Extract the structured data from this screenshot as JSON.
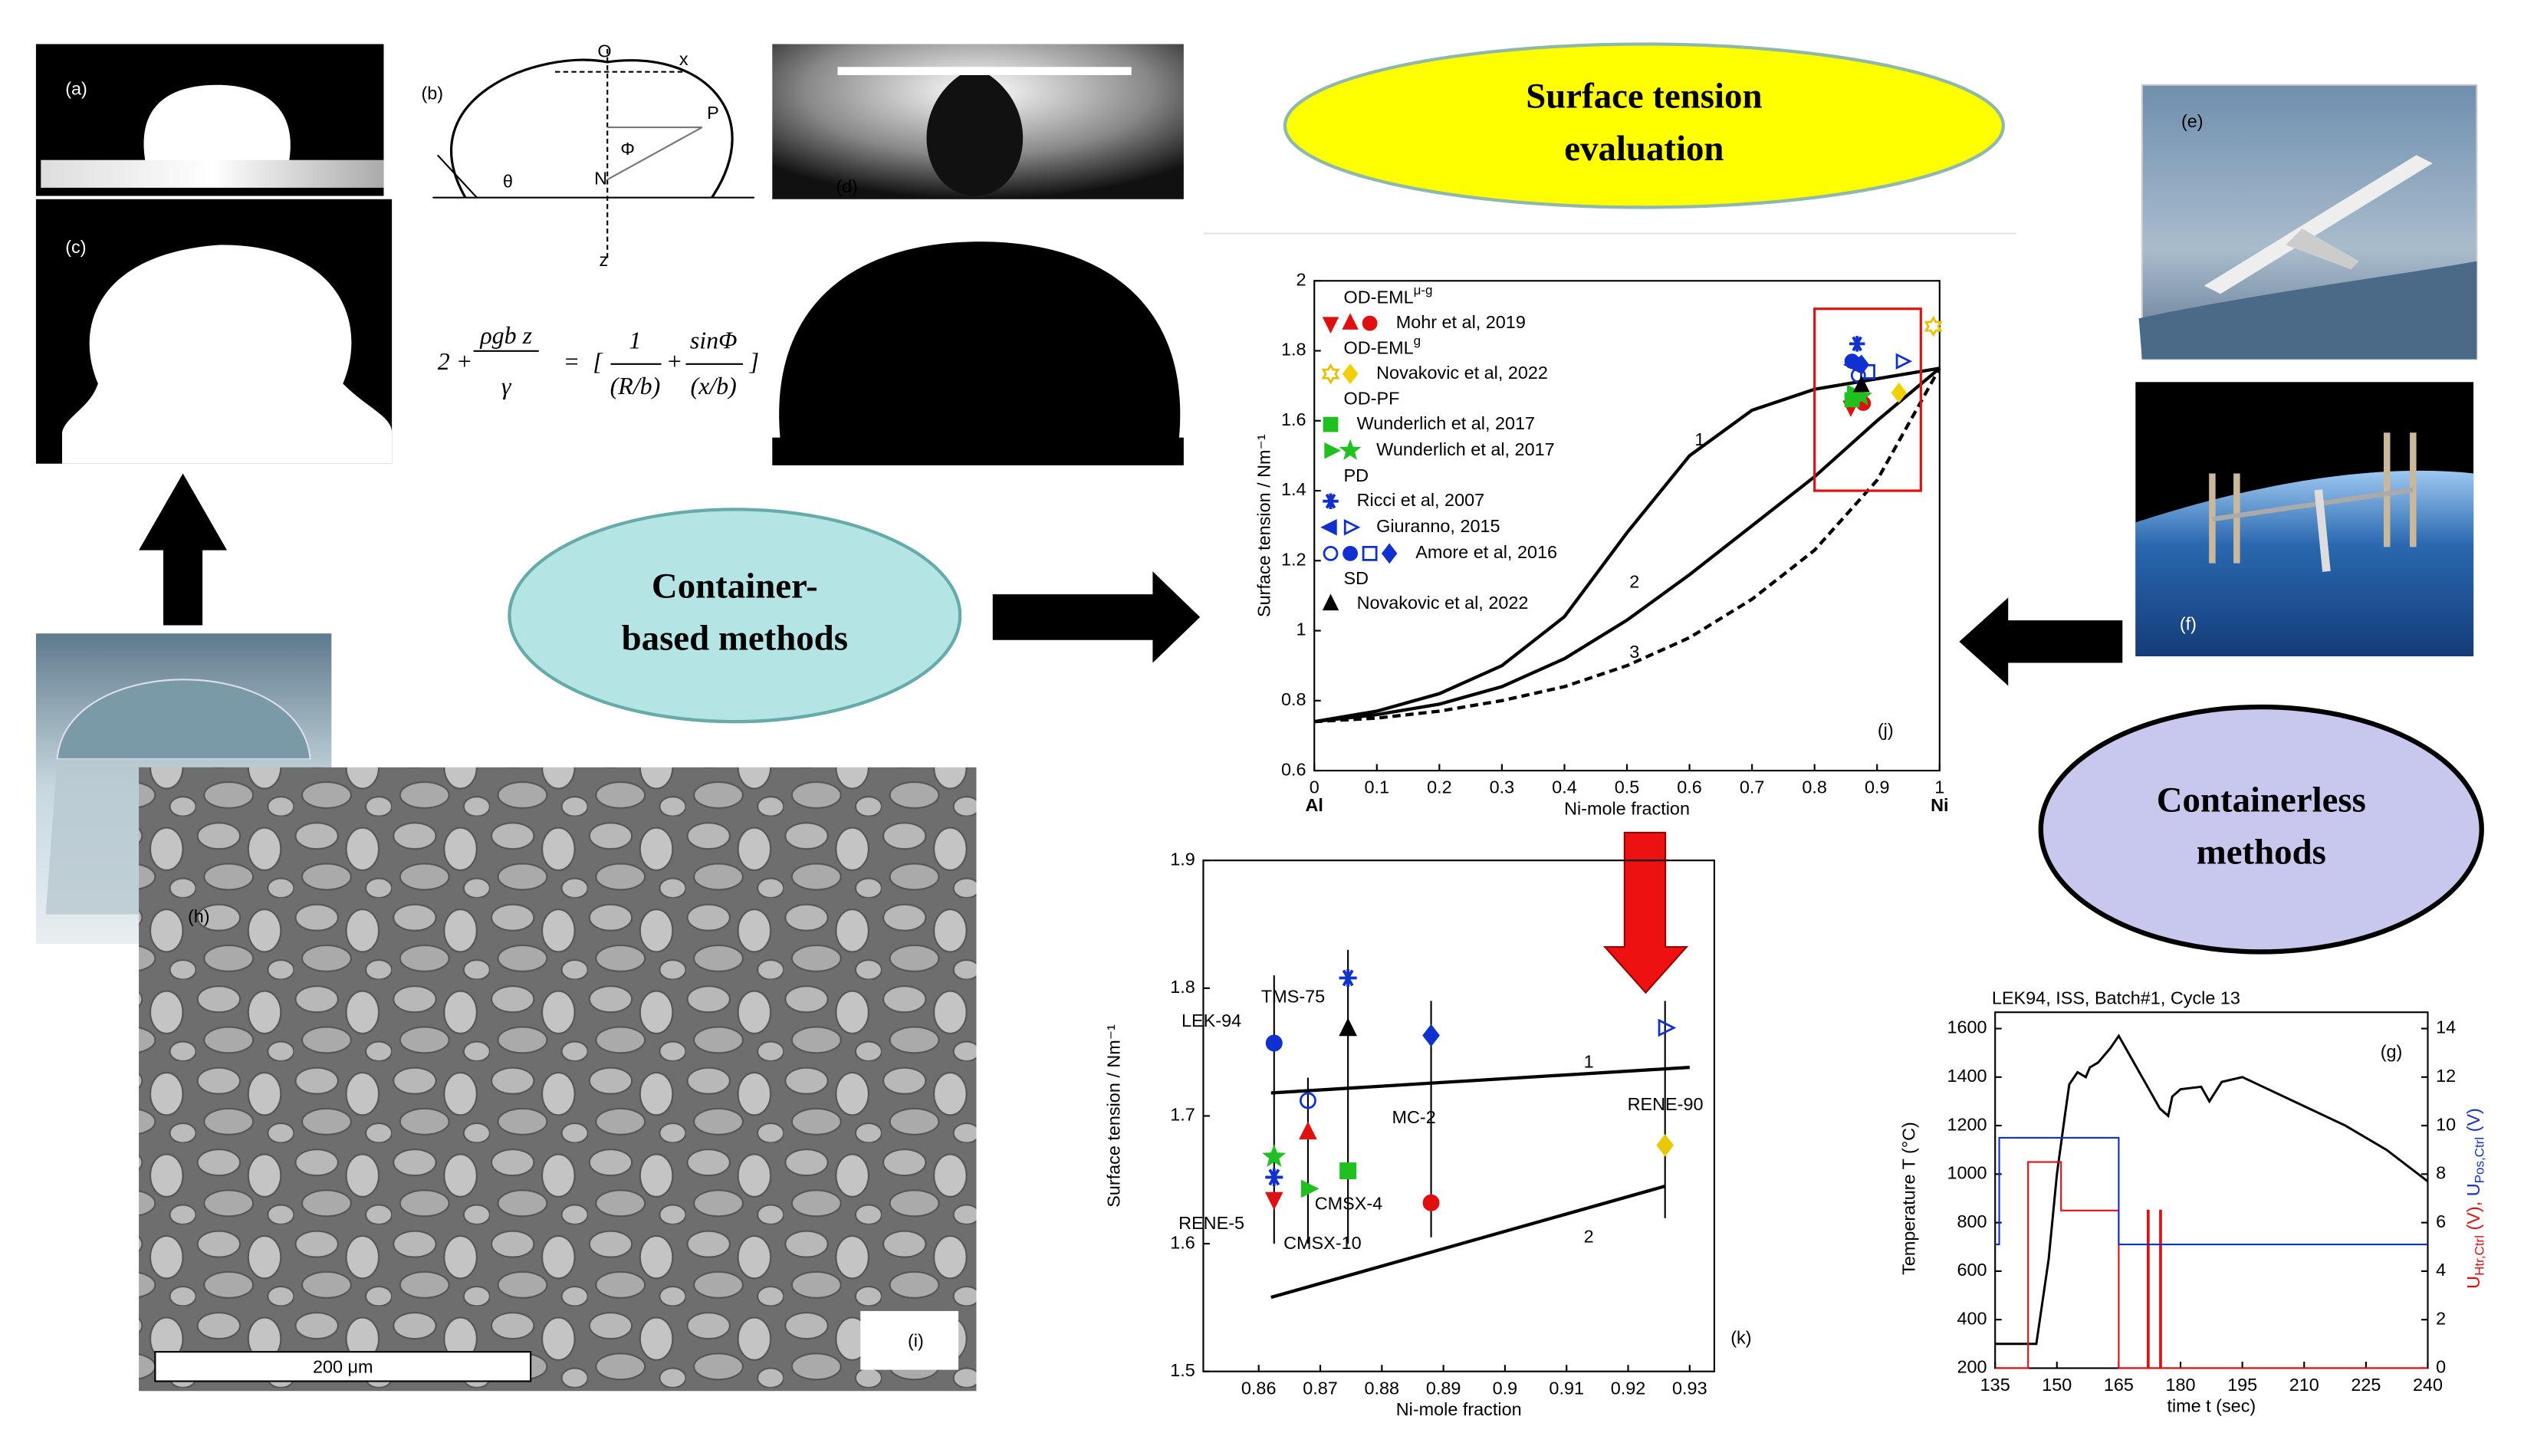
{
  "panel_labels": [
    "(a)",
    "(b)",
    "(c)",
    "(d)",
    "(e)",
    "(f)",
    "(h)",
    "(i)"
  ],
  "diagram_labels": [
    "O",
    "x",
    "P",
    "Φ",
    "N",
    "θ",
    "z"
  ],
  "equation": {
    "lhs_const": "2 +",
    "lhs_num": "ρgb z",
    "lhs_den": "γ",
    "eq": "=",
    "open": "[",
    "t1_num": "1",
    "t1_den": "(R/b)",
    "plus": "+",
    "t2_num": "sinΦ",
    "t2_den": "(x/b)",
    "close": "]"
  },
  "scale_bar": "200 μm",
  "ovals": [
    {
      "lines": [
        "Surface tension",
        "evaluation"
      ],
      "color": "#ffff00"
    },
    {
      "lines": [
        "Container-",
        "based methods"
      ],
      "color": "#b4e4e4"
    },
    {
      "lines": [
        "Containerless",
        "methods"
      ],
      "color": "#c8c8ee"
    }
  ],
  "chart_data": [
    {
      "type": "line",
      "label": "(j)",
      "xlabel": "Ni-mole fraction",
      "ylabel": "Surface tension / Nm⁻¹",
      "x_end_labels": [
        "Al",
        "Ni"
      ],
      "xlim": [
        0,
        1
      ],
      "ylim": [
        0.6,
        2
      ],
      "xticks": [
        0,
        0.1,
        0.2,
        0.3,
        0.4,
        0.5,
        0.6,
        0.7,
        0.8,
        0.9,
        1
      ],
      "yticks": [
        0.6,
        0.8,
        1,
        1.2,
        1.4,
        1.6,
        1.8,
        2
      ],
      "x": [
        0,
        0.1,
        0.2,
        0.3,
        0.4,
        0.5,
        0.6,
        0.7,
        0.8,
        0.9,
        1
      ],
      "series": [
        {
          "name": "1",
          "color": "#000000",
          "dashed": false,
          "values": [
            0.74,
            0.77,
            0.82,
            0.9,
            1.04,
            1.28,
            1.5,
            1.63,
            1.69,
            1.72,
            1.75
          ]
        },
        {
          "name": "2",
          "color": "#000000",
          "dashed": false,
          "values": [
            0.74,
            0.76,
            0.79,
            0.84,
            0.92,
            1.03,
            1.16,
            1.3,
            1.44,
            1.6,
            1.75
          ]
        },
        {
          "name": "3",
          "color": "#000000",
          "dashed": true,
          "values": [
            0.74,
            0.75,
            0.77,
            0.8,
            0.84,
            0.9,
            0.98,
            1.09,
            1.23,
            1.43,
            1.75
          ]
        }
      ],
      "highlight": {
        "xlim": [
          0.8,
          0.97
        ],
        "ylim": [
          1.4,
          1.92
        ],
        "color": "#e01010"
      },
      "legend_groups": [
        {
          "title": "OD-EML",
          "title_sup": "μ-g",
          "series": [
            {
              "name": "Mohr et al, 2019",
              "points": [
                {
                  "x": 0.858,
                  "y": 1.64,
                  "marker": "tri-down",
                  "color": "#e01010"
                },
                {
                  "x": 0.87,
                  "y": 1.67,
                  "marker": "tri-up",
                  "color": "#e01010"
                },
                {
                  "x": 0.878,
                  "y": 1.65,
                  "marker": "circle",
                  "color": "#e01010"
                }
              ]
            }
          ]
        },
        {
          "title": "OD-EML",
          "title_sup": "g",
          "series": [
            {
              "name": "Novakovic et al, 2022",
              "points": [
                {
                  "x": 0.99,
                  "y": 1.87,
                  "marker": "hexagram",
                  "color": "#e8c000"
                },
                {
                  "x": 0.935,
                  "y": 1.68,
                  "marker": "diamond",
                  "color": "#f0d000"
                }
              ]
            }
          ]
        },
        {
          "title": "OD-PF",
          "title_sup": "",
          "series": [
            {
              "name": "Wunderlich et al, 2017",
              "points": [
                {
                  "x": 0.86,
                  "y": 1.66,
                  "marker": "square",
                  "color": "#20c020"
                }
              ]
            },
            {
              "name": "Wunderlich et al, 2017",
              "points": [
                {
                  "x": 0.862,
                  "y": 1.68,
                  "marker": "tri-right",
                  "color": "#20c020"
                },
                {
                  "x": 0.875,
                  "y": 1.67,
                  "marker": "star",
                  "color": "#20c020"
                }
              ]
            }
          ]
        },
        {
          "title": "PD",
          "title_sup": "",
          "series": [
            {
              "name": "Ricci et al, 2007",
              "points": [
                {
                  "x": 0.868,
                  "y": 1.82,
                  "marker": "asterisk",
                  "color": "#1030d0"
                }
              ]
            },
            {
              "name": "Giuranno, 2015",
              "points": [
                {
                  "x": 0.862,
                  "y": 1.76,
                  "marker": "tri-left",
                  "color": "#1030d0"
                },
                {
                  "x": 0.94,
                  "y": 1.77,
                  "marker": "tri-right-open",
                  "color": "#1030d0"
                }
              ]
            },
            {
              "name": "Amore et al, 2016",
              "points": [
                {
                  "x": 0.87,
                  "y": 1.73,
                  "marker": "circle-open",
                  "color": "#1030d0"
                },
                {
                  "x": 0.86,
                  "y": 1.77,
                  "marker": "circle",
                  "color": "#1030d0"
                },
                {
                  "x": 0.885,
                  "y": 1.74,
                  "marker": "square-open",
                  "color": "#1030d0"
                },
                {
                  "x": 0.875,
                  "y": 1.76,
                  "marker": "diamond",
                  "color": "#1030d0"
                }
              ]
            }
          ]
        },
        {
          "title": "SD",
          "title_sup": "",
          "series": [
            {
              "name": "Novakovic et al, 2022",
              "points": [
                {
                  "x": 0.875,
                  "y": 1.7,
                  "marker": "tri-up",
                  "color": "#000000"
                }
              ]
            }
          ]
        }
      ]
    },
    {
      "type": "scatter",
      "label": "(k)",
      "xlabel": "Ni-mole fraction",
      "ylabel": "Surface tension / Nm⁻¹",
      "xlim": [
        0.851,
        0.934
      ],
      "ylim": [
        1.5,
        1.9
      ],
      "xticks": [
        0.86,
        0.87,
        0.88,
        0.89,
        0.9,
        0.91,
        0.92,
        0.93
      ],
      "yticks": [
        1.5,
        1.6,
        1.7,
        1.8,
        1.9
      ],
      "lines": [
        {
          "name": "1",
          "x": [
            0.862,
            0.93
          ],
          "values": [
            1.718,
            1.738
          ]
        },
        {
          "name": "2",
          "x": [
            0.862,
            0.926
          ],
          "values": [
            1.558,
            1.645
          ]
        }
      ],
      "alloys": [
        "LEK-94",
        "TMS-75",
        "RENE-5",
        "CMSX-10",
        "CMSX-4",
        "MC-2",
        "RENE-90"
      ],
      "error_bars": [
        {
          "x": 0.8625,
          "low": 1.6,
          "high": 1.81
        },
        {
          "x": 0.868,
          "low": 1.6,
          "high": 1.73
        },
        {
          "x": 0.8745,
          "low": 1.6,
          "high": 1.83
        },
        {
          "x": 0.888,
          "low": 1.605,
          "high": 1.79
        },
        {
          "x": 0.926,
          "low": 1.62,
          "high": 1.79
        }
      ],
      "points": [
        {
          "x": 0.8625,
          "y": 1.757,
          "marker": "circle",
          "color": "#1030d0"
        },
        {
          "x": 0.8625,
          "y": 1.668,
          "marker": "star",
          "color": "#20c020"
        },
        {
          "x": 0.8625,
          "y": 1.652,
          "marker": "asterisk",
          "color": "#1030d0"
        },
        {
          "x": 0.8625,
          "y": 1.635,
          "marker": "tri-down",
          "color": "#e01010"
        },
        {
          "x": 0.868,
          "y": 1.712,
          "marker": "circle-open",
          "color": "#1030d0"
        },
        {
          "x": 0.868,
          "y": 1.687,
          "marker": "tri-up",
          "color": "#e01010"
        },
        {
          "x": 0.868,
          "y": 1.643,
          "marker": "tri-right",
          "color": "#20c020"
        },
        {
          "x": 0.8745,
          "y": 1.808,
          "marker": "asterisk",
          "color": "#1030d0"
        },
        {
          "x": 0.8745,
          "y": 1.768,
          "marker": "tri-up",
          "color": "#000000"
        },
        {
          "x": 0.8745,
          "y": 1.657,
          "marker": "square",
          "color": "#20c020"
        },
        {
          "x": 0.888,
          "y": 1.763,
          "marker": "diamond",
          "color": "#1030d0"
        },
        {
          "x": 0.888,
          "y": 1.632,
          "marker": "circle",
          "color": "#e01010"
        },
        {
          "x": 0.926,
          "y": 1.769,
          "marker": "tri-right-open",
          "color": "#1030d0"
        },
        {
          "x": 0.926,
          "y": 1.677,
          "marker": "diamond",
          "color": "#e8c800"
        }
      ]
    },
    {
      "type": "line",
      "label": "(g)",
      "title": "LEK94, ISS, Batch#1, Cycle 13",
      "xlabel": "time t (sec)",
      "ylabel": "Temperature T (°C)",
      "y2label": [
        {
          "text": "U",
          "sub": "Htr,Ctrl",
          "after": " (V), ",
          "color": "#e01010"
        },
        {
          "text": "U",
          "sub": "Pos,Ctrl",
          "after": " (V)",
          "color": "#1030d0"
        }
      ],
      "xlim": [
        135,
        240
      ],
      "ylim": [
        200,
        1600
      ],
      "y2lim": [
        0,
        14
      ],
      "xticks": [
        135,
        150,
        165,
        180,
        195,
        210,
        225,
        240
      ],
      "yticks": [
        200,
        400,
        600,
        800,
        1000,
        1200,
        1400,
        1600
      ],
      "y2ticks": [
        0,
        2,
        4,
        6,
        8,
        10,
        12,
        14
      ],
      "series": [
        {
          "color": "#000000",
          "axis": "y",
          "x": [
            135,
            143,
            145,
            148,
            150,
            152,
            153,
            155,
            157,
            158,
            160,
            163,
            165,
            168,
            170,
            172,
            175,
            177,
            178,
            180,
            185,
            187,
            190,
            195,
            200,
            210,
            220,
            230,
            240
          ],
          "values": [
            300,
            300,
            300,
            650,
            1000,
            1250,
            1370,
            1420,
            1400,
            1440,
            1460,
            1520,
            1570,
            1480,
            1420,
            1360,
            1270,
            1240,
            1320,
            1350,
            1360,
            1300,
            1380,
            1400,
            1360,
            1280,
            1200,
            1100,
            970
          ]
        },
        {
          "color": "#e01010",
          "axis": "y2",
          "x": [
            135,
            143,
            143,
            151,
            151,
            165,
            165,
            172,
            172,
            172.3,
            172.3,
            175,
            175,
            175.3,
            175.3,
            240
          ],
          "values": [
            0,
            0,
            8.5,
            8.5,
            6.5,
            6.5,
            0,
            0,
            6.5,
            6.5,
            0,
            0,
            6.5,
            6.5,
            0,
            0
          ]
        },
        {
          "color": "#1030d0",
          "axis": "y2",
          "x": [
            135,
            136,
            136,
            165,
            165,
            240
          ],
          "values": [
            5.1,
            5.1,
            9.5,
            9.5,
            5.1,
            5.1
          ]
        }
      ]
    }
  ]
}
